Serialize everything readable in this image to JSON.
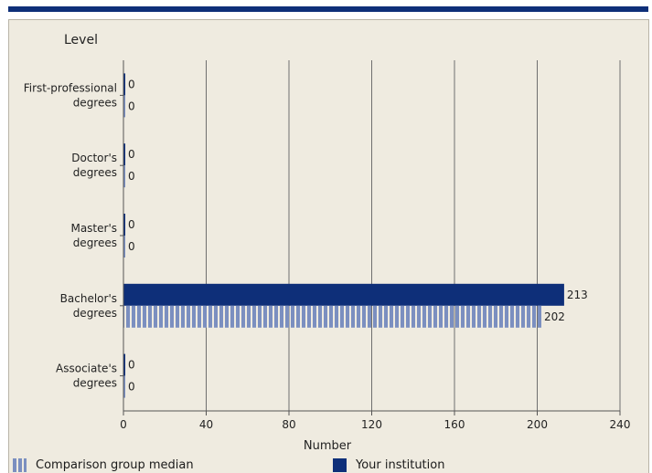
{
  "chart_data": {
    "type": "bar",
    "orientation": "horizontal",
    "title": "",
    "ylabel": "Level",
    "xlabel": "Number",
    "categories": [
      [
        "First-professional",
        "degrees"
      ],
      [
        "Doctor's",
        "degrees"
      ],
      [
        "Master's",
        "degrees"
      ],
      [
        "Bachelor's",
        "degrees"
      ],
      [
        "Associate's",
        "degrees"
      ]
    ],
    "series": [
      {
        "name": "Your institution",
        "values": [
          0,
          0,
          0,
          213,
          0
        ],
        "color": "#0e2f79"
      },
      {
        "name": "Comparison group median",
        "values": [
          0,
          0,
          0,
          202,
          0
        ],
        "color": "#7b8fc0"
      }
    ],
    "xlim": [
      0,
      240
    ],
    "xticks": [
      0,
      40,
      80,
      120,
      160,
      200,
      240
    ],
    "grid": "vertical",
    "legend": "bottom"
  },
  "legend": {
    "median_label": "Comparison group median",
    "institution_label": "Your institution"
  }
}
